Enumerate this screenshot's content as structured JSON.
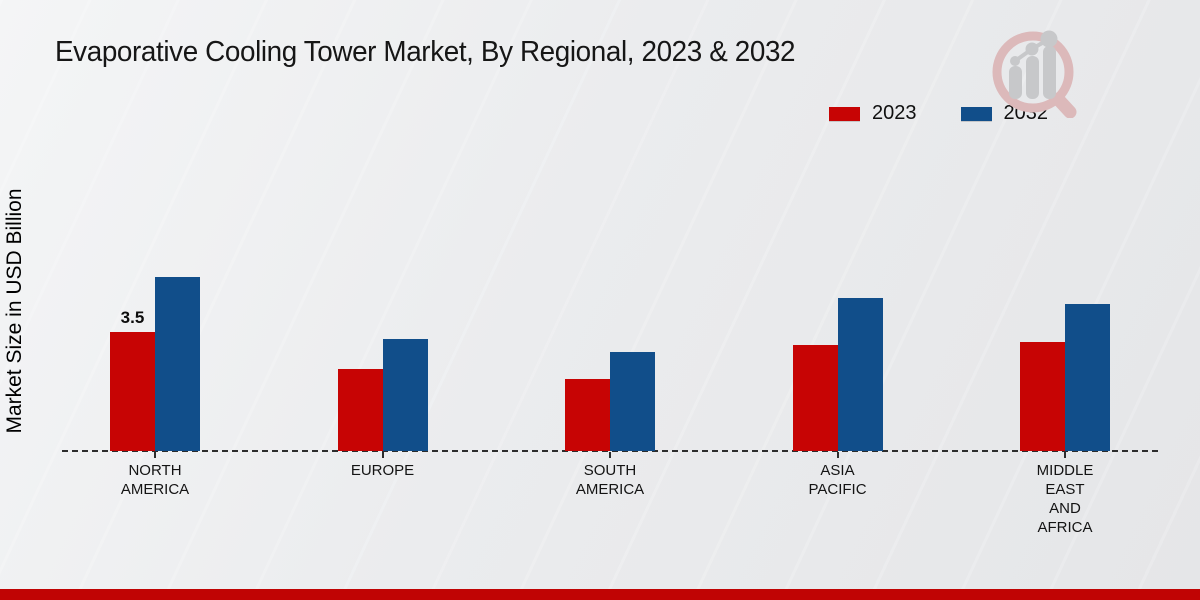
{
  "title": "Evaporative Cooling Tower Market, By Regional, 2023 & 2032",
  "colors": {
    "series_2023": "#c70404",
    "series_2032": "#114e8a",
    "footer_bar": "#c00404",
    "baseline": "#2d2d2d",
    "background_light": "#f4f5f6",
    "background_dark": "#e5e6e8",
    "logo_ring": "#dcb9ba",
    "logo_bars": "#c7c8ca"
  },
  "chart_data": {
    "type": "bar",
    "title": "Evaporative Cooling Tower Market, By Regional, 2023 & 2032",
    "xlabel": "",
    "ylabel": "Market Size in USD Billion",
    "categories": [
      "NORTH AMERICA",
      "EUROPE",
      "SOUTH AMERICA",
      "ASIA PACIFIC",
      "MIDDLE EAST AND AFRICA"
    ],
    "series": [
      {
        "name": "2023",
        "color": "#c70404",
        "values": [
          3.5,
          2.4,
          2.1,
          3.1,
          3.2
        ]
      },
      {
        "name": "2032",
        "color": "#114e8a",
        "values": [
          5.1,
          3.3,
          2.9,
          4.5,
          4.3
        ]
      }
    ],
    "value_labels": [
      {
        "series_index": 0,
        "category_index": 0,
        "text": "3.5"
      }
    ],
    "ylim": [
      0,
      5.6
    ],
    "grid": false,
    "baseline_style": "dashed",
    "legend_position": "top-right",
    "legend_entries": [
      "2023",
      "2032"
    ]
  },
  "logo": {
    "name": "magnifier-growth-chart-logo"
  },
  "footer": {
    "present": true
  }
}
